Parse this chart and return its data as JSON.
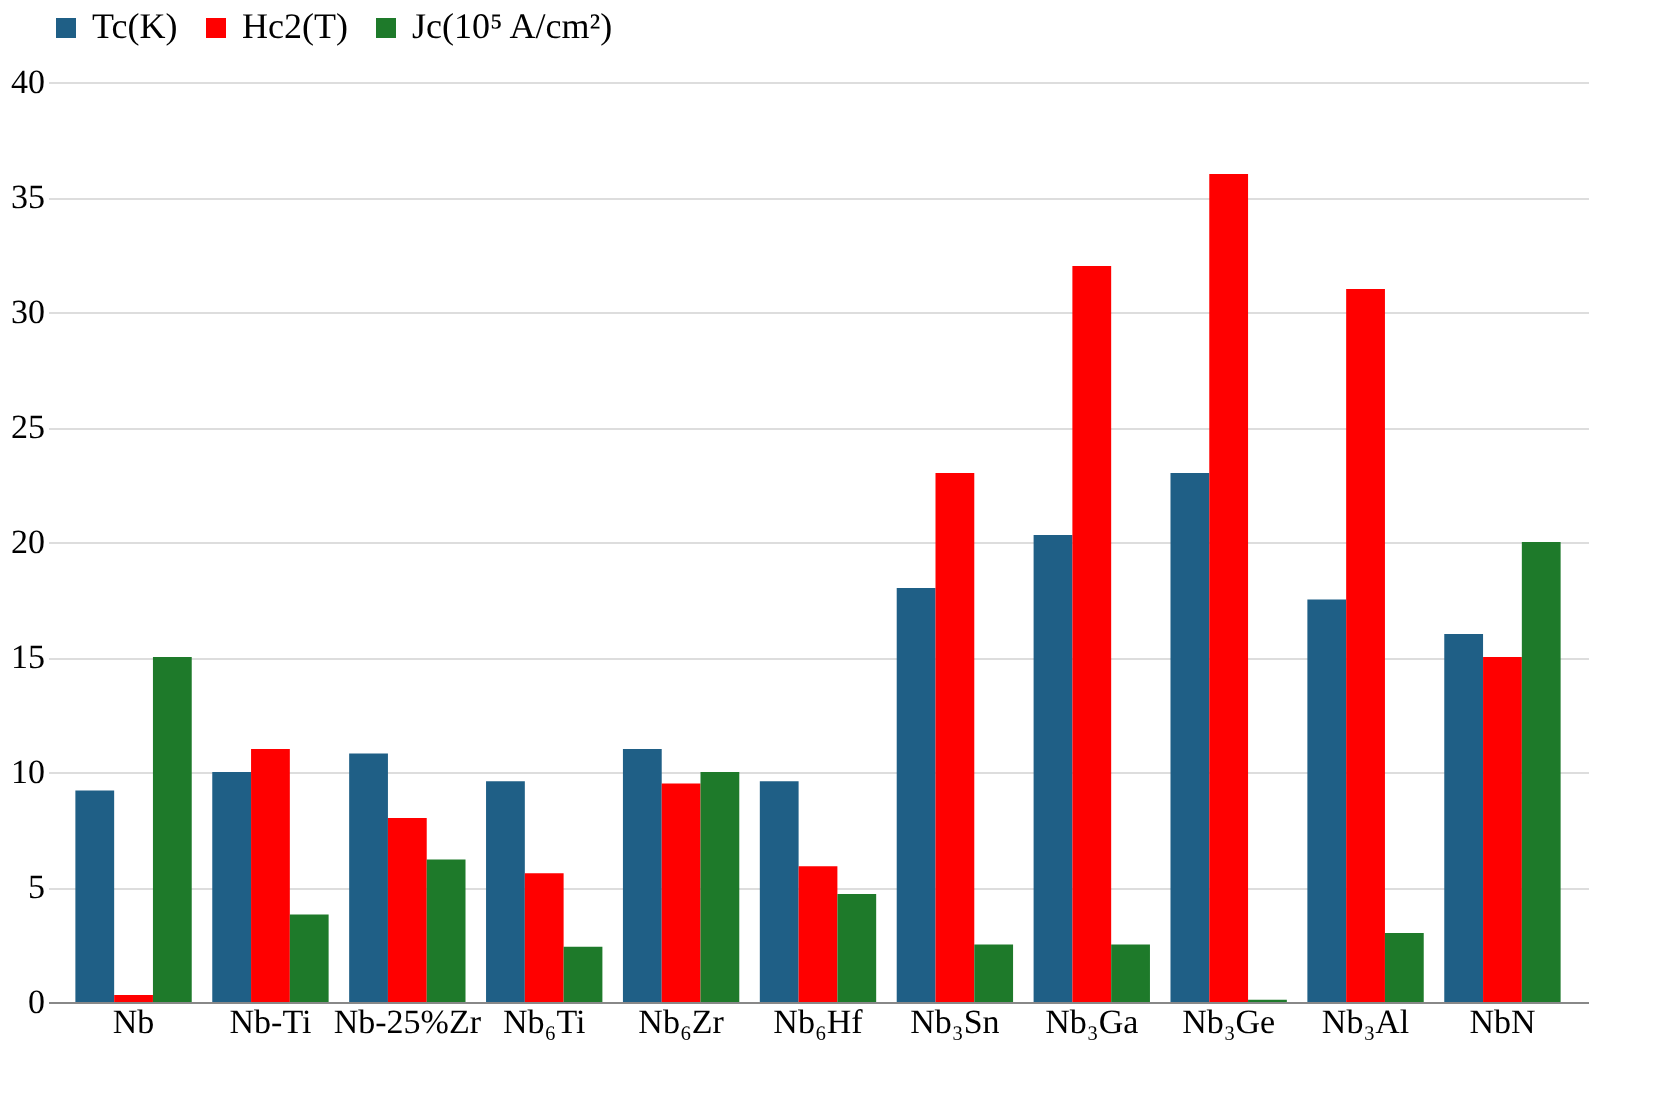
{
  "chart_data": {
    "type": "bar",
    "categories": [
      "Nb",
      "Nb-Ti",
      "Nb-25%Zr",
      "Nb₆Ti",
      "Nb₆Zr",
      "Nb₆Hf",
      "Nb₃Sn",
      "Nb₃Ga",
      "Nb₃Ge",
      "Nb₃Al",
      "NbN"
    ],
    "series": [
      {
        "name": "Tc(K)",
        "color": "#1f5f86",
        "values": [
          9.2,
          10,
          10.8,
          9.6,
          11,
          9.6,
          18,
          20.3,
          23,
          17.5,
          16
        ]
      },
      {
        "name": "Hc2(T)",
        "color": "#ff0000",
        "values": [
          0.3,
          11,
          8,
          5.6,
          9.5,
          5.9,
          23,
          32,
          36,
          31,
          15
        ]
      },
      {
        "name": "Jc(10⁵ A/cm²)",
        "color": "#1e7a2a",
        "values": [
          15,
          3.8,
          6.2,
          2.4,
          10,
          4.7,
          2.5,
          2.5,
          0.1,
          3,
          20
        ]
      }
    ],
    "ylim": [
      0,
      40
    ],
    "yticks": [
      0,
      5,
      10,
      15,
      20,
      25,
      30,
      35,
      40
    ],
    "grid": "y",
    "legend": "top"
  }
}
